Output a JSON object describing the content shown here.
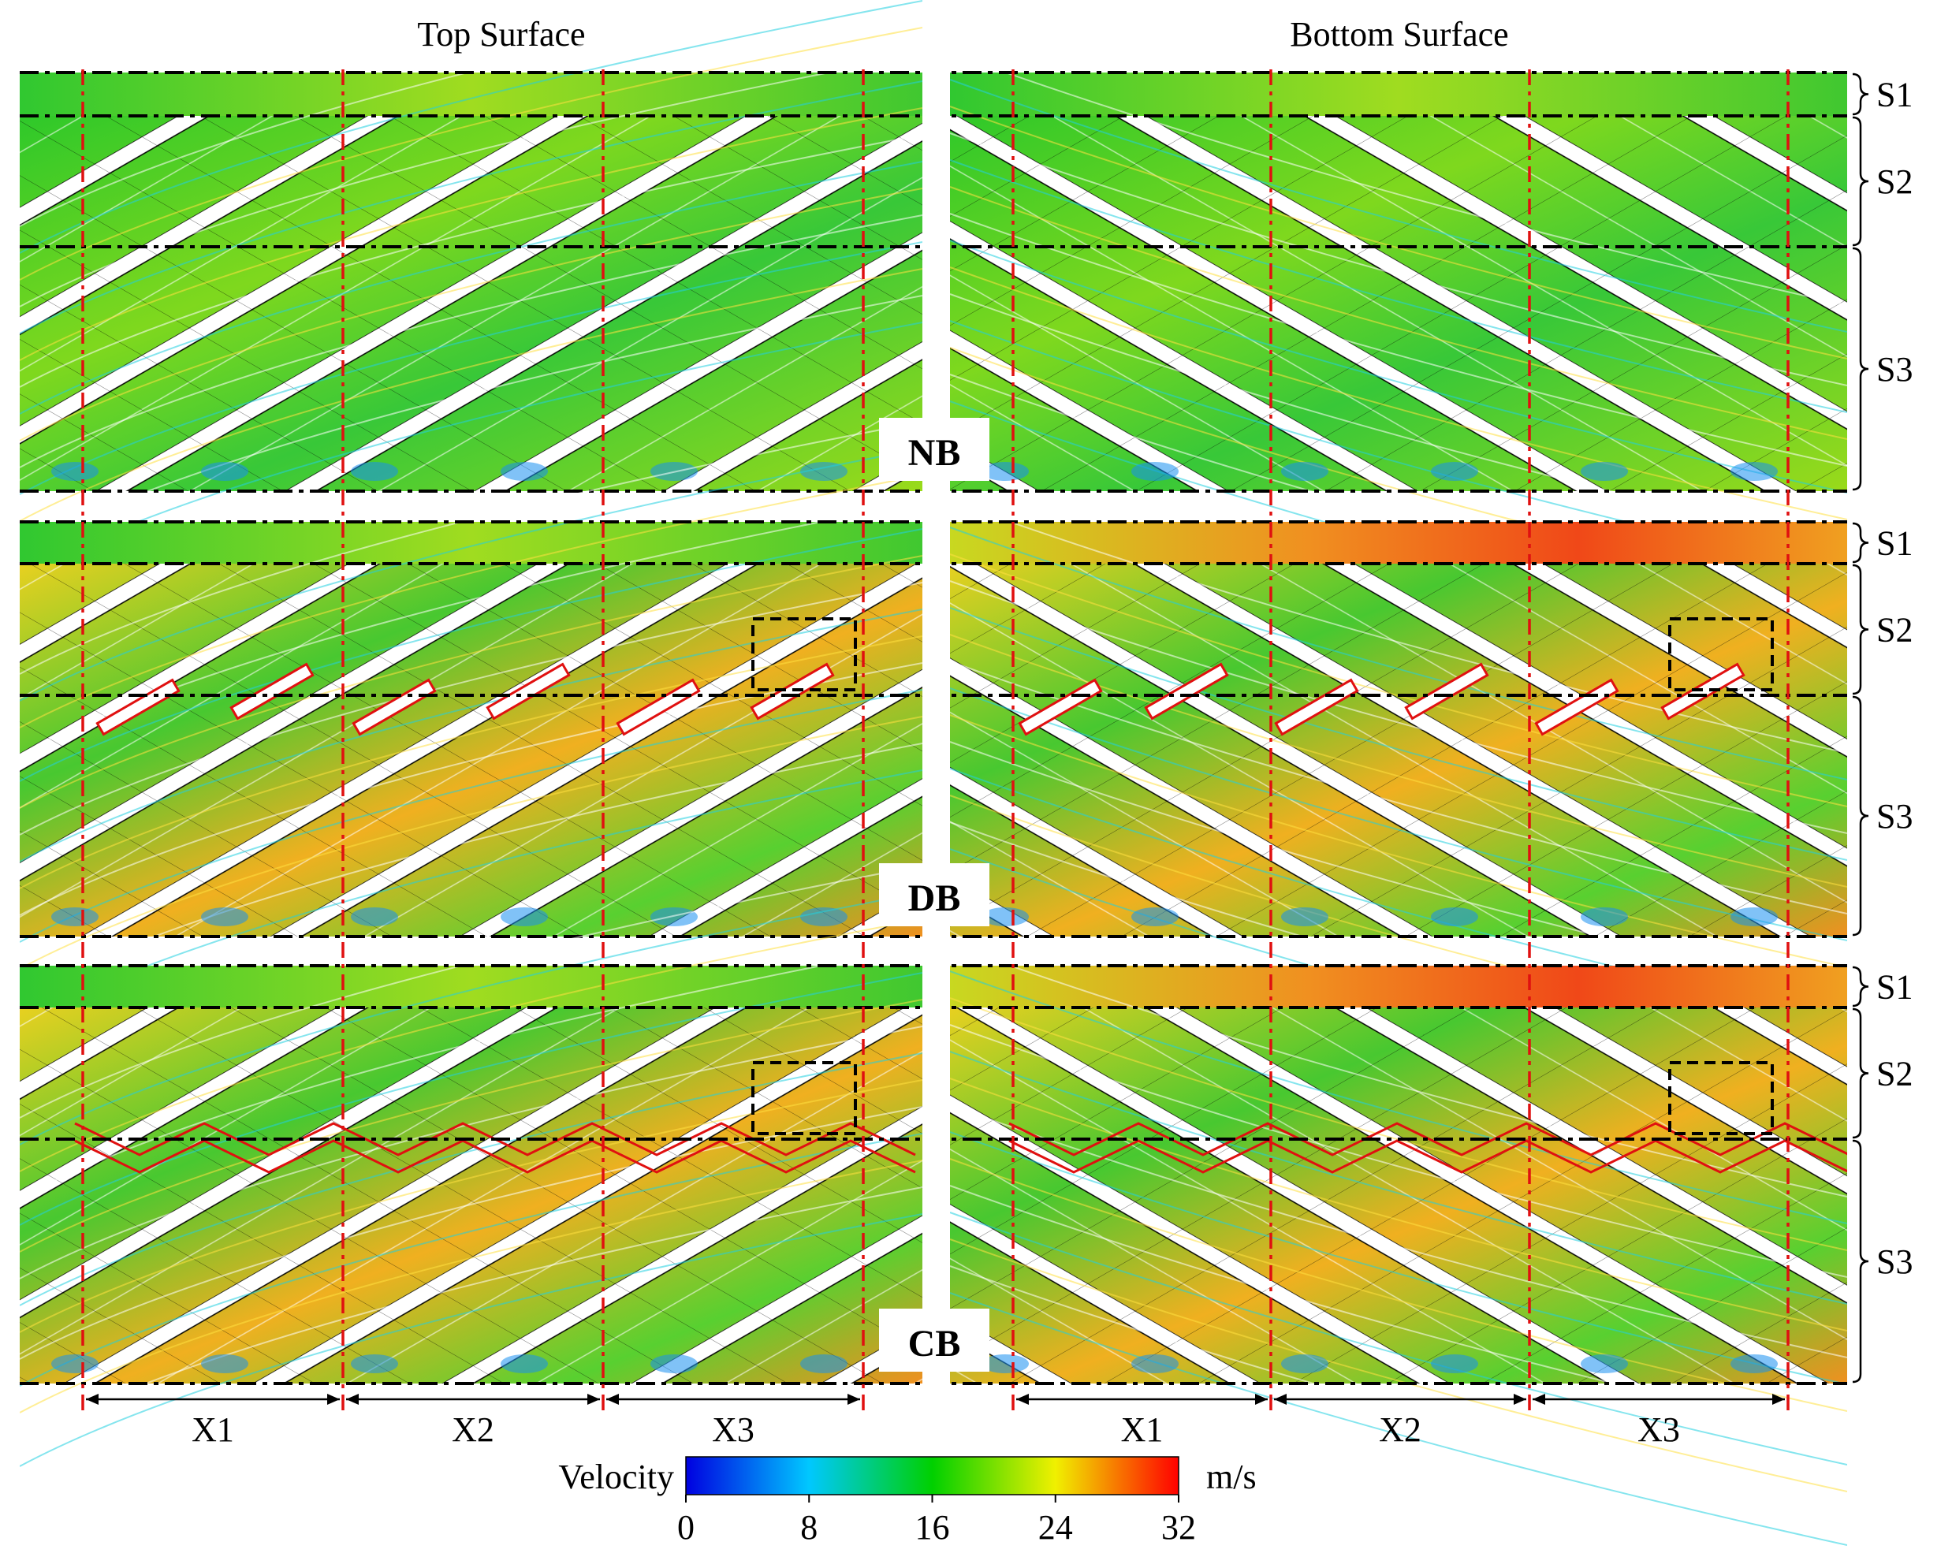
{
  "headers": {
    "top": "Top Surface",
    "bottom": "Bottom Surface"
  },
  "rows": [
    {
      "label": "NB",
      "baffle": "none"
    },
    {
      "label": "DB",
      "baffle": "discrete"
    },
    {
      "label": "CB",
      "baffle": "continuous"
    }
  ],
  "sections": [
    "S1",
    "S2",
    "S3"
  ],
  "streamwise": [
    "X1",
    "X2",
    "X3"
  ],
  "colorbar": {
    "title": "Velocity",
    "unit": "m/s",
    "ticks": [
      "0",
      "8",
      "16",
      "24",
      "32"
    ],
    "colors": [
      "#0000e0",
      "#00c8ff",
      "#00d000",
      "#f0f000",
      "#ff0000"
    ]
  }
}
